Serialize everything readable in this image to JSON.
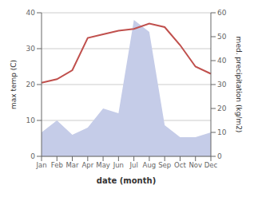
{
  "chart_data": {
    "type": "line",
    "xlabel": "date (month)",
    "ylabel": "max temp (C)",
    "y2label": "med. precipitation (kg/m2)",
    "categories": [
      "Jan",
      "Feb",
      "Mar",
      "Apr",
      "May",
      "Jun",
      "Jul",
      "Aug",
      "Sep",
      "Oct",
      "Nov",
      "Dec"
    ],
    "series": [
      {
        "type": "area",
        "color": "#c5cce8",
        "axis": "y2",
        "values": [
          10,
          15,
          9,
          12,
          20,
          18,
          57,
          52,
          13,
          8,
          8,
          10
        ]
      },
      {
        "type": "line",
        "color": "#c0504d",
        "values": [
          20.5,
          21.5,
          24,
          33,
          34,
          35,
          35.5,
          37,
          36,
          31,
          25,
          23
        ]
      }
    ],
    "ylim": [
      0,
      40
    ],
    "yticks": [
      0,
      10,
      20,
      30,
      40
    ],
    "y2lim": [
      0,
      60
    ],
    "y2ticks": [
      0,
      10,
      20,
      30,
      40,
      50,
      60
    ],
    "grid": true
  }
}
